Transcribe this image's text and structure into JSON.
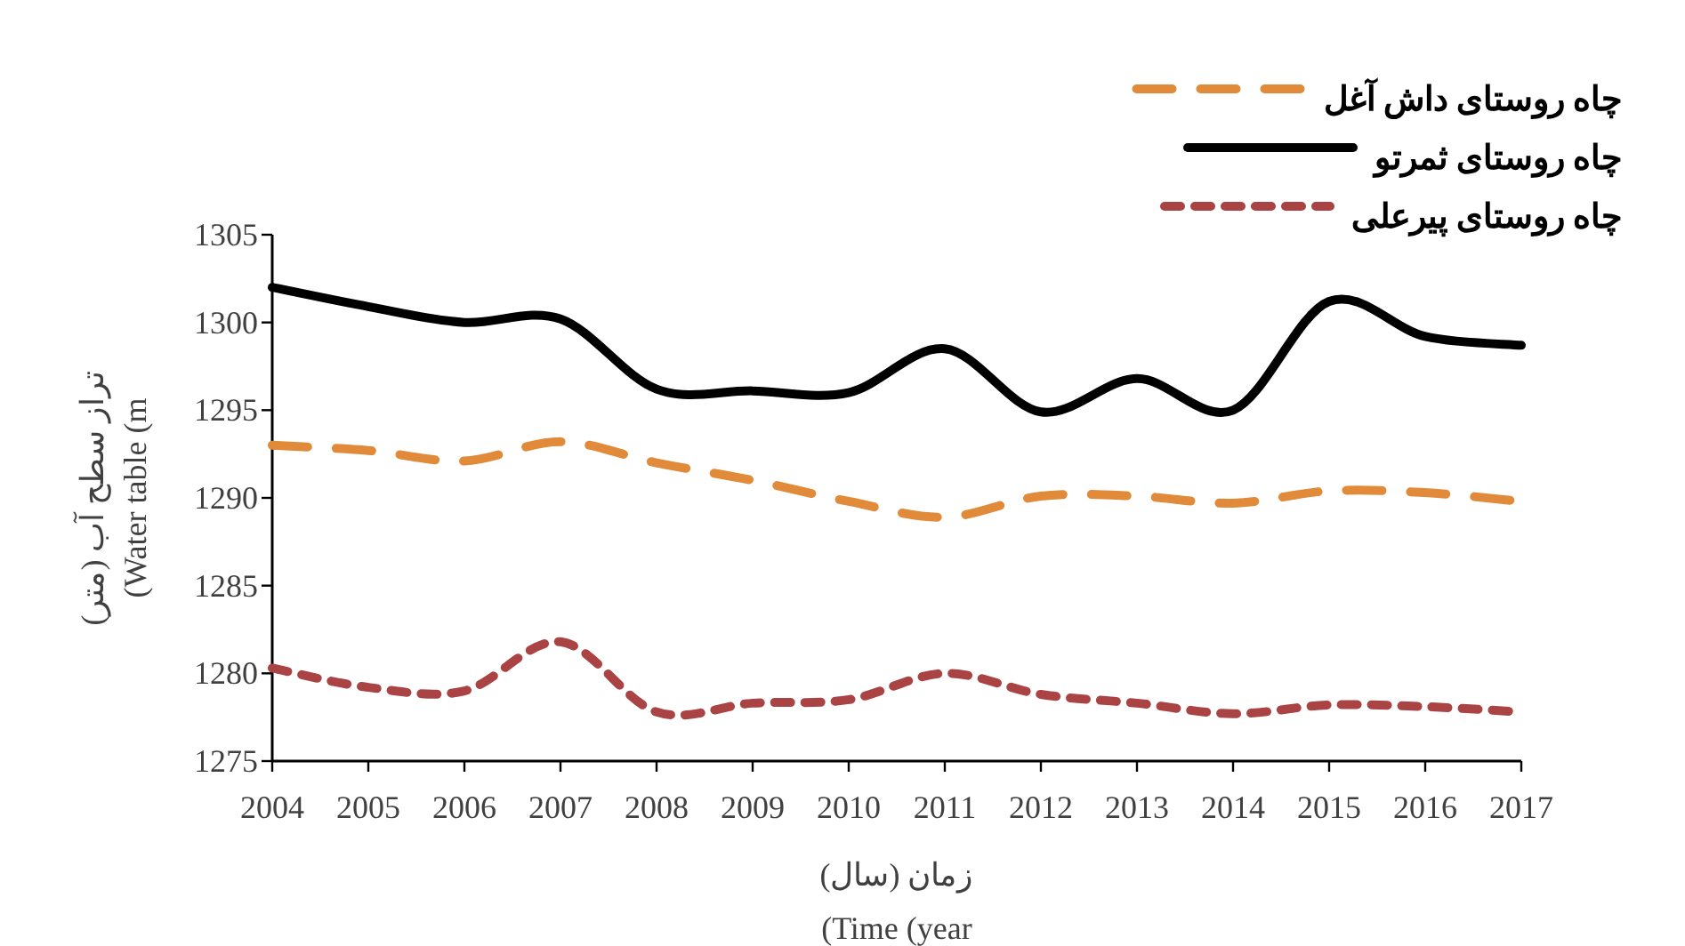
{
  "chart_data": {
    "type": "line",
    "xlabel": "زمان (سال)\n(Time (year",
    "ylabel": "تراز سطح آب (متر)\n(Water table (m",
    "x": [
      2004,
      2005,
      2006,
      2007,
      2008,
      2009,
      2010,
      2011,
      2012,
      2013,
      2014,
      2015,
      2016,
      2017
    ],
    "xlim": [
      2004,
      2017
    ],
    "xticks": [
      2004,
      2005,
      2006,
      2007,
      2008,
      2009,
      2010,
      2011,
      2012,
      2013,
      2014,
      2015,
      2016,
      2017
    ],
    "ylim": [
      1275,
      1305
    ],
    "yticks": [
      1275,
      1280,
      1285,
      1290,
      1295,
      1300,
      1305
    ],
    "grid": false,
    "legend": "top right",
    "marker": "none",
    "series": [
      {
        "name": "چاه روستای داش آغل",
        "color": "#e08a3a",
        "line_style": "dashed",
        "values": [
          1293,
          1292.7,
          1292.1,
          1293.2,
          1292,
          1291,
          1289.8,
          1288.9,
          1290.1,
          1290.1,
          1289.7,
          1290.4,
          1290.3,
          1289.8
        ]
      },
      {
        "name": "چاه روستای ثمرتو",
        "color": "#000000",
        "line_style": "solid",
        "values": [
          1302,
          1300.9,
          1300,
          1300.2,
          1296.2,
          1296.1,
          1296,
          1298.5,
          1294.9,
          1296.8,
          1295,
          1301.2,
          1299.2,
          1298.7
        ]
      },
      {
        "name": "چاه روستای پیرعلی",
        "color": "#aa4444",
        "line_style": "dotted",
        "values": [
          1280.3,
          1279.2,
          1279,
          1281.8,
          1277.8,
          1278.3,
          1278.5,
          1280,
          1278.8,
          1278.3,
          1277.7,
          1278.2,
          1278.1,
          1277.8
        ]
      }
    ]
  }
}
